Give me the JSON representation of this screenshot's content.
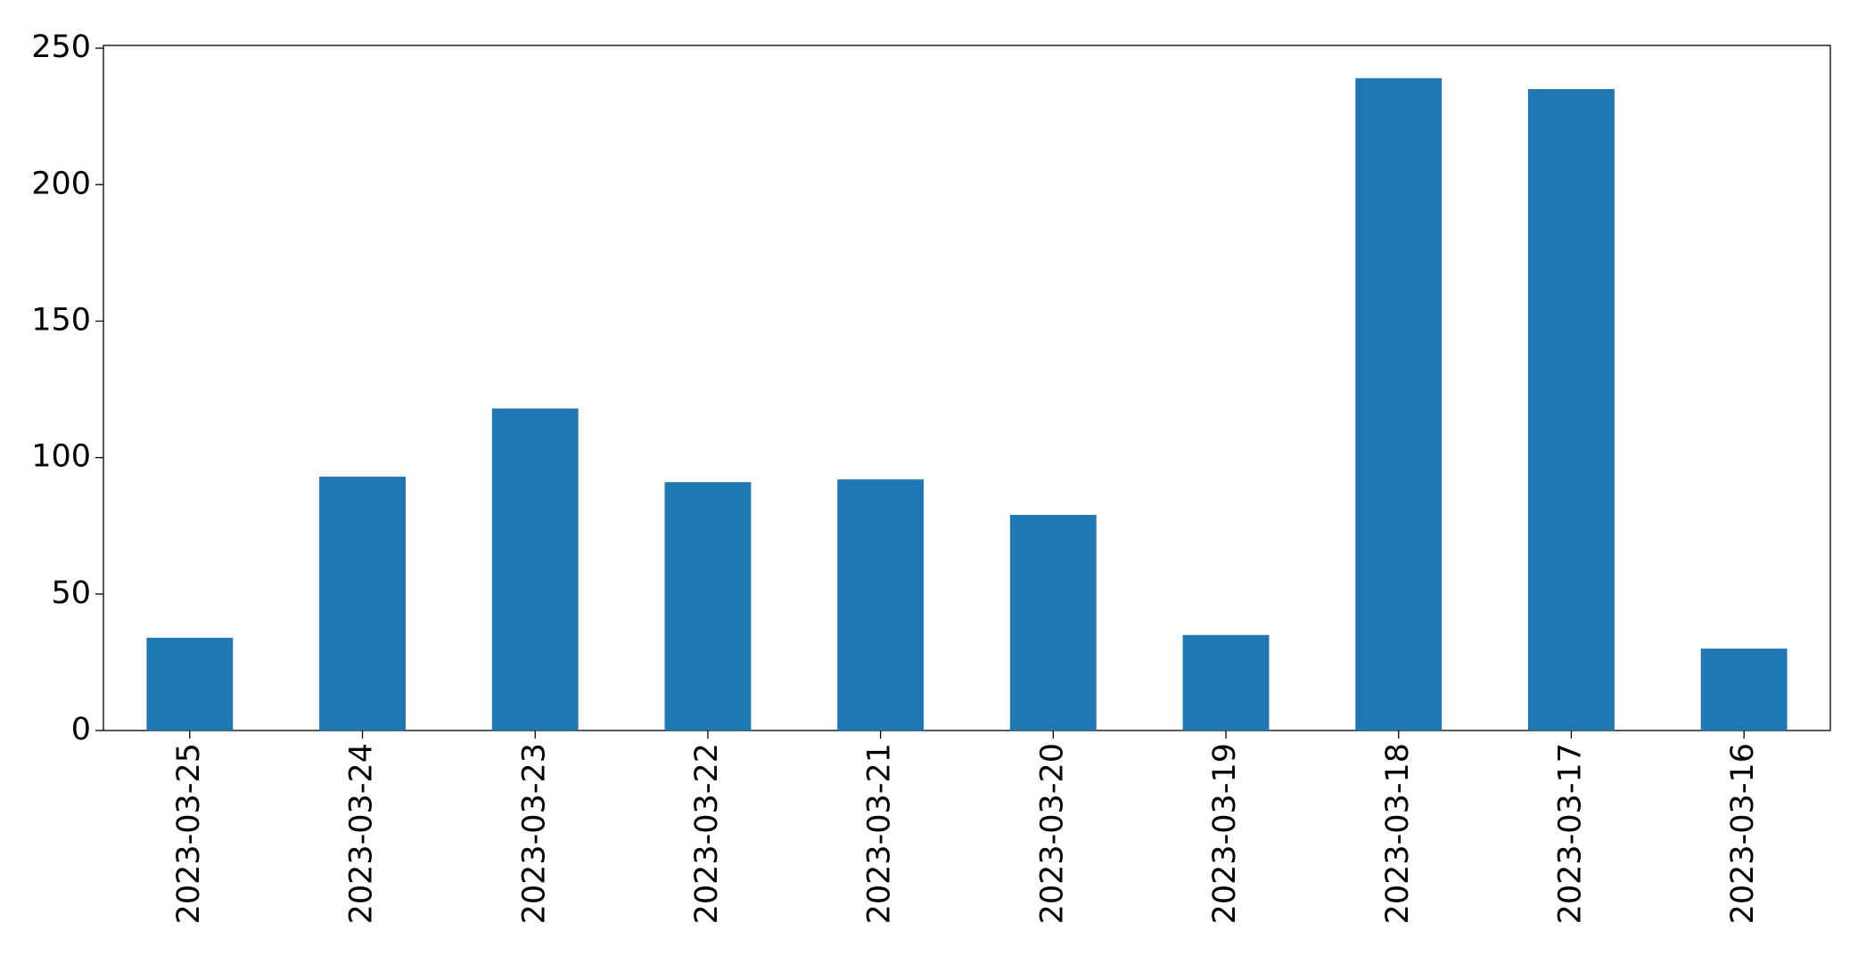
{
  "chart_data": {
    "type": "bar",
    "categories": [
      "2023-03-25",
      "2023-03-24",
      "2023-03-23",
      "2023-03-22",
      "2023-03-21",
      "2023-03-20",
      "2023-03-19",
      "2023-03-18",
      "2023-03-17",
      "2023-03-16"
    ],
    "values": [
      34,
      93,
      118,
      91,
      92,
      79,
      35,
      239,
      235,
      30
    ],
    "color": "#1f77b4",
    "ylim": [
      0,
      251
    ],
    "yticks": [
      0,
      50,
      100,
      150,
      200,
      250
    ],
    "grid": false
  }
}
